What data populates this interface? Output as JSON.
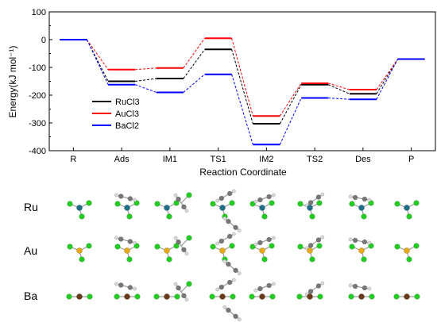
{
  "chart_data": {
    "type": "line",
    "xlabel": "Reaction Coordinate",
    "ylabel": "Energy(kJ mol⁻¹)",
    "ylim": [
      -400,
      100
    ],
    "yticks": [
      -400,
      -300,
      -200,
      -100,
      0,
      100
    ],
    "categories": [
      "R",
      "Ads",
      "IM1",
      "TS1",
      "IM2",
      "TS2",
      "Des",
      "P"
    ],
    "legend_position": "left",
    "series": [
      {
        "name": "RuCl3",
        "color": "#000000",
        "values": [
          0,
          -150,
          -140,
          -35,
          -303,
          -162,
          -195,
          -70
        ]
      },
      {
        "name": "AuCl3",
        "color": "#ff0000",
        "values": [
          0,
          -108,
          -102,
          5,
          -275,
          -157,
          -180,
          -70
        ]
      },
      {
        "name": "BaCl2",
        "color": "#0000ff",
        "values": [
          0,
          -162,
          -190,
          -125,
          -378,
          -210,
          -215,
          -70
        ]
      }
    ]
  },
  "structures": {
    "rows": [
      {
        "label": "Ru",
        "metal_color": "#1f6f8b"
      },
      {
        "label": "Au",
        "metal_color": "#e6a817"
      },
      {
        "label": "Ba",
        "metal_color": "#6b3a1a"
      }
    ],
    "atom_colors": {
      "chlorine": "#22cc22",
      "carbon": "#777777",
      "hydrogen": "#d8d8d8"
    }
  }
}
